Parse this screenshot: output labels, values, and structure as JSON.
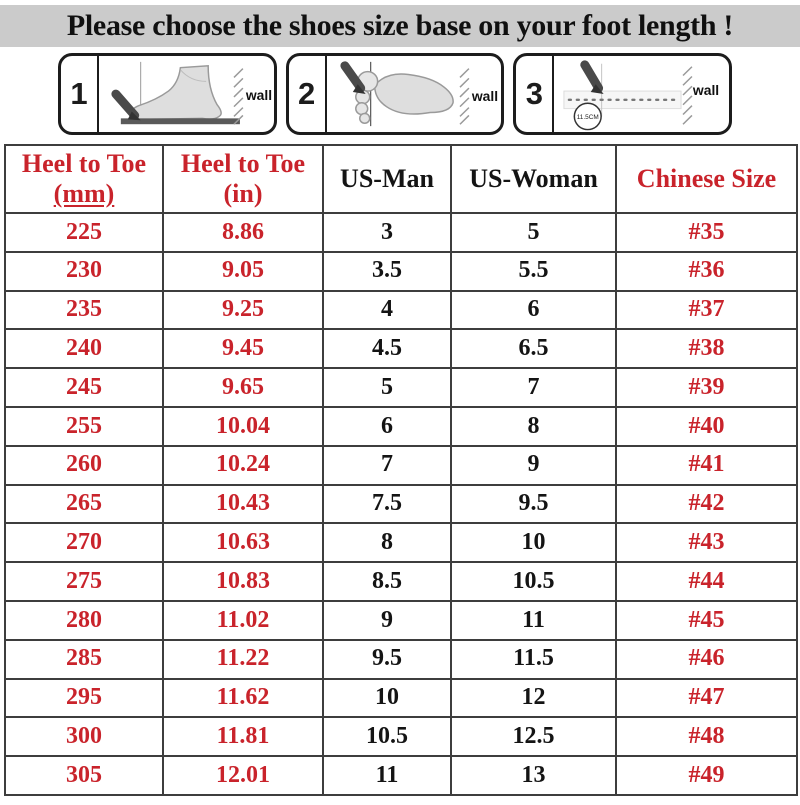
{
  "title": "Please choose the shoes size base on your foot length !",
  "colors": {
    "accent_red": "#c9232b",
    "text_black": "#141414",
    "title_background": "#cbcbcb",
    "table_border": "#3d3d3d"
  },
  "diagrams": {
    "panels": [
      {
        "number": "1",
        "wall_label": "wall",
        "illustration": "foot-side-view-heel-against-wall"
      },
      {
        "number": "2",
        "wall_label": "wall",
        "illustration": "footprint-top-view-heel-against-wall"
      },
      {
        "number": "3",
        "wall_label": "wall",
        "circle_label": "11.5CM",
        "illustration": "measure-distance-to-wall-ruler"
      }
    ]
  },
  "table": {
    "columns": [
      {
        "line1": "Heel to Toe",
        "line2": "(mm)",
        "color": "red",
        "underline_line2": true
      },
      {
        "line1": "Heel to Toe",
        "line2": "(in)",
        "color": "red",
        "underline_line2": false
      },
      {
        "line1": "US-Man",
        "color": "black"
      },
      {
        "line1": "US-Woman",
        "color": "black"
      },
      {
        "line1": "Chinese Size",
        "color": "red"
      }
    ],
    "column_colors": [
      "red",
      "red",
      "black",
      "black",
      "red"
    ],
    "rows": [
      [
        "225",
        "8.86",
        "3",
        "5",
        "#35"
      ],
      [
        "230",
        "9.05",
        "3.5",
        "5.5",
        "#36"
      ],
      [
        "235",
        "9.25",
        "4",
        "6",
        "#37"
      ],
      [
        "240",
        "9.45",
        "4.5",
        "6.5",
        "#38"
      ],
      [
        "245",
        "9.65",
        "5",
        "7",
        "#39"
      ],
      [
        "255",
        "10.04",
        "6",
        "8",
        "#40"
      ],
      [
        "260",
        "10.24",
        "7",
        "9",
        "#41"
      ],
      [
        "265",
        "10.43",
        "7.5",
        "9.5",
        "#42"
      ],
      [
        "270",
        "10.63",
        "8",
        "10",
        "#43"
      ],
      [
        "275",
        "10.83",
        "8.5",
        "10.5",
        "#44"
      ],
      [
        "280",
        "11.02",
        "9",
        "11",
        "#45"
      ],
      [
        "285",
        "11.22",
        "9.5",
        "11.5",
        "#46"
      ],
      [
        "295",
        "11.62",
        "10",
        "12",
        "#47"
      ],
      [
        "300",
        "11.81",
        "10.5",
        "12.5",
        "#48"
      ],
      [
        "305",
        "12.01",
        "11",
        "13",
        "#49"
      ]
    ]
  }
}
